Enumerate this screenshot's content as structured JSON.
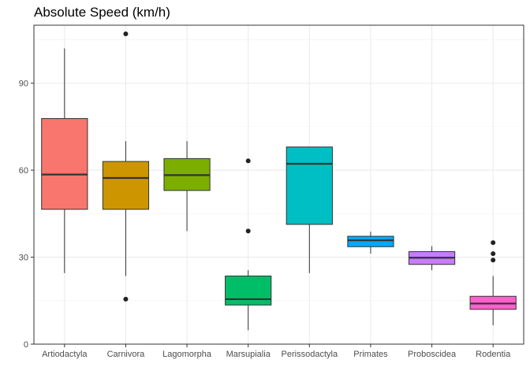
{
  "chart_data": {
    "type": "boxplot",
    "title": "Absolute Speed (km/h)",
    "xlabel": "",
    "ylabel": "",
    "ylim": [
      0,
      110
    ],
    "yticks": [
      0,
      30,
      60,
      90
    ],
    "grid": true,
    "legend": "none",
    "categories": [
      "Artiodactyla",
      "Carnivora",
      "Lagomorpha",
      "Marsupialia",
      "Perissodactyla",
      "Primates",
      "Proboscidea",
      "Rodentia"
    ],
    "boxes": [
      {
        "category": "Artiodactyla",
        "whisker_low": 24.5,
        "q1": 46.5,
        "median": 58.5,
        "q3": 77.8,
        "whisker_high": 102,
        "outliers": [],
        "color": "#F8766D"
      },
      {
        "category": "Carnivora",
        "whisker_low": 23.5,
        "q1": 46.5,
        "median": 57.3,
        "q3": 63,
        "whisker_high": 70,
        "outliers": [
          15.5,
          107
        ],
        "color": "#CD9600"
      },
      {
        "category": "Lagomorpha",
        "whisker_low": 39,
        "q1": 53,
        "median": 58.3,
        "q3": 64,
        "whisker_high": 70,
        "outliers": [],
        "color": "#7CAE00"
      },
      {
        "category": "Marsupialia",
        "whisker_low": 4.8,
        "q1": 13.5,
        "median": 15.5,
        "q3": 23.5,
        "whisker_high": 25.5,
        "outliers": [
          39,
          63.2
        ],
        "color": "#00BE67"
      },
      {
        "category": "Perissodactyla",
        "whisker_low": 24.5,
        "q1": 41.3,
        "median": 62.2,
        "q3": 68,
        "whisker_high": 68,
        "outliers": [],
        "color": "#00BFC4"
      },
      {
        "category": "Primates",
        "whisker_low": 31.2,
        "q1": 33.6,
        "median": 35.8,
        "q3": 37.2,
        "whisker_high": 38.8,
        "outliers": [],
        "color": "#00A9FF"
      },
      {
        "category": "Proboscidea",
        "whisker_low": 25.5,
        "q1": 27.5,
        "median": 29.8,
        "q3": 31.9,
        "whisker_high": 33.8,
        "outliers": [],
        "color": "#C77CFF"
      },
      {
        "category": "Rodentia",
        "whisker_low": 6.5,
        "q1": 12,
        "median": 14,
        "q3": 16.5,
        "whisker_high": 23.5,
        "outliers": [
          29,
          31.2,
          35
        ],
        "color": "#FF61CC"
      }
    ]
  }
}
